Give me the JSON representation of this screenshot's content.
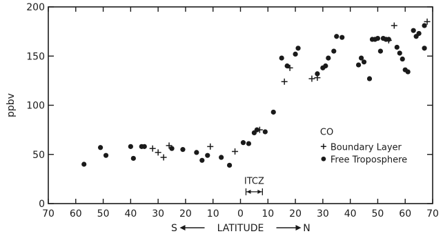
{
  "chart_data": {
    "type": "scatter",
    "title": "",
    "ylabel": "ppbv",
    "xlabel": "S ← LATITUDE → N",
    "xlabel_parts": {
      "south": "S",
      "center": "LATITUDE",
      "north": "N"
    },
    "x_tick_labels": [
      "70",
      "60",
      "50",
      "40",
      "30",
      "20",
      "10",
      "0",
      "10",
      "20",
      "30",
      "40",
      "50",
      "60",
      "70"
    ],
    "y_ticks": [
      0,
      50,
      100,
      150,
      200
    ],
    "xlim": [
      -70,
      70
    ],
    "ylim": [
      0,
      200
    ],
    "grid": false,
    "legend": {
      "placement": "right-center",
      "title": "CO",
      "entries": [
        {
          "label": "Boundary Layer",
          "marker": "plus"
        },
        {
          "label": "Free Troposphere",
          "marker": "dot"
        }
      ]
    },
    "annotation": {
      "text": "ITCZ",
      "x_range": [
        2,
        8
      ]
    },
    "series": [
      {
        "name": "Boundary Layer",
        "marker": "plus",
        "points": [
          [
            -32,
            56
          ],
          [
            -30,
            52
          ],
          [
            -28,
            47
          ],
          [
            -26,
            59
          ],
          [
            -11,
            58
          ],
          [
            -2,
            53
          ],
          [
            7,
            75
          ],
          [
            16,
            124
          ],
          [
            18,
            138
          ],
          [
            26,
            127
          ],
          [
            28,
            128
          ],
          [
            56,
            181
          ],
          [
            68,
            185
          ],
          [
            54,
            166
          ]
        ]
      },
      {
        "name": "Free Troposphere",
        "marker": "dot",
        "points": [
          [
            -57,
            40
          ],
          [
            -51,
            57
          ],
          [
            -49,
            49
          ],
          [
            -40,
            58
          ],
          [
            -39,
            46
          ],
          [
            -36,
            58
          ],
          [
            -35,
            58
          ],
          [
            -25,
            56
          ],
          [
            -21,
            55
          ],
          [
            -16,
            52
          ],
          [
            -14,
            44
          ],
          [
            -12,
            49
          ],
          [
            -7,
            47
          ],
          [
            -4,
            39
          ],
          [
            1,
            62
          ],
          [
            3,
            61
          ],
          [
            5,
            72
          ],
          [
            6,
            75
          ],
          [
            9,
            73
          ],
          [
            12,
            93
          ],
          [
            15,
            148
          ],
          [
            17,
            140
          ],
          [
            20,
            152
          ],
          [
            21,
            158
          ],
          [
            28,
            132
          ],
          [
            30,
            138
          ],
          [
            31,
            140
          ],
          [
            32,
            148
          ],
          [
            34,
            155
          ],
          [
            35,
            170
          ],
          [
            37,
            169
          ],
          [
            43,
            141
          ],
          [
            44,
            148
          ],
          [
            45,
            144
          ],
          [
            47,
            127
          ],
          [
            48,
            167
          ],
          [
            49,
            167
          ],
          [
            50,
            168
          ],
          [
            51,
            155
          ],
          [
            52,
            168
          ],
          [
            53,
            167
          ],
          [
            54,
            167
          ],
          [
            57,
            159
          ],
          [
            58,
            153
          ],
          [
            59,
            147
          ],
          [
            60,
            136
          ],
          [
            61,
            134
          ],
          [
            63,
            176
          ],
          [
            64,
            170
          ],
          [
            65,
            173
          ],
          [
            67,
            181
          ],
          [
            67,
            158
          ]
        ]
      }
    ]
  },
  "colors": {
    "ink": "#1a1a1a",
    "background": "#ffffff"
  }
}
